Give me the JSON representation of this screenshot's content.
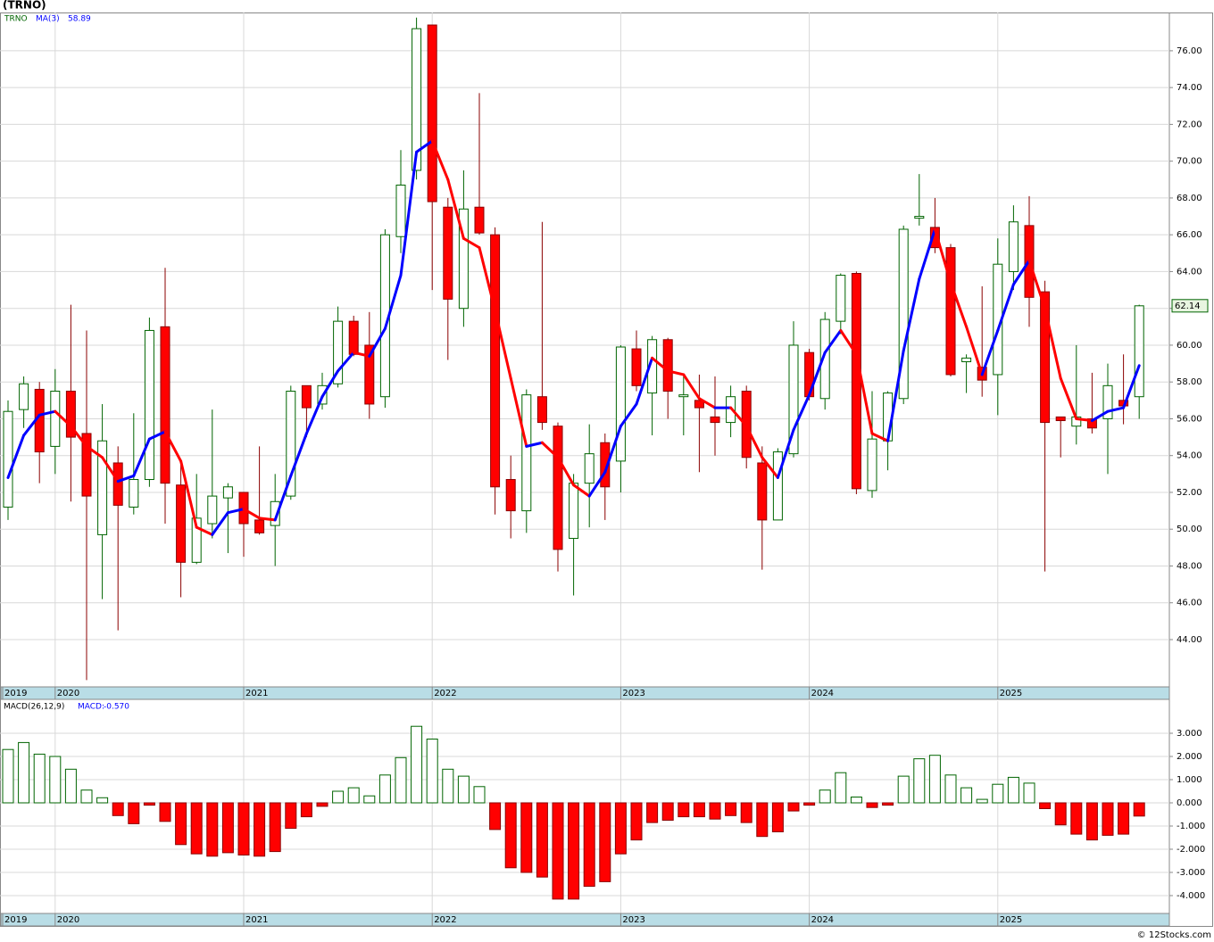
{
  "chart_data": [
    {
      "type": "candlestick",
      "title": "(TRNO)",
      "symbol": "TRNO",
      "categories": [
        "2019",
        null,
        null,
        "2020",
        null,
        null,
        null,
        null,
        null,
        null,
        null,
        null,
        null,
        null,
        null,
        "2021",
        null,
        null,
        null,
        null,
        null,
        null,
        null,
        null,
        null,
        null,
        null,
        "2022",
        null,
        null,
        null,
        null,
        null,
        null,
        null,
        null,
        null,
        null,
        null,
        "2023",
        null,
        null,
        null,
        null,
        null,
        null,
        null,
        null,
        null,
        null,
        null,
        "2024",
        null,
        null,
        null,
        null,
        null,
        null,
        null,
        null,
        null,
        null,
        null,
        "2025",
        null,
        null,
        null,
        null,
        null,
        null,
        null,
        null,
        null
      ],
      "open": [
        51.2,
        56.5,
        57.6,
        54.5,
        57.5,
        55.2,
        49.7,
        53.6,
        51.2,
        52.7,
        61,
        52.4,
        48.2,
        50.3,
        51.7,
        52,
        50.5,
        50.2,
        51.8,
        57.8,
        56.8,
        57.9,
        61.3,
        60,
        57.2,
        65.9,
        69.5,
        77.4,
        67.5,
        62,
        67.5,
        66,
        52.7,
        51,
        57.2,
        55.6,
        49.5,
        52.5,
        54.7,
        53.7,
        59.8,
        57.4,
        60.3,
        57.2,
        57,
        56.1,
        55.8,
        57.5,
        53.6,
        50.5,
        54.1,
        59.6,
        57.1,
        61.3,
        63.9,
        52.1,
        54.8,
        57.1,
        66.9,
        66.4,
        65.3,
        59.1,
        58.8,
        58.4,
        64,
        66.5,
        62.9,
        56.1,
        55.6,
        56,
        56,
        57,
        57.2
      ],
      "high": [
        57,
        58.3,
        58,
        58.7,
        62.2,
        60.8,
        56.8,
        54.5,
        56.3,
        61.5,
        64.2,
        53.5,
        53,
        56.5,
        52.5,
        52,
        54.5,
        53,
        57.8,
        57.8,
        58.5,
        62.1,
        61.6,
        61.8,
        66.3,
        70.6,
        77.8,
        77.4,
        68,
        69.5,
        73.7,
        66.4,
        54,
        57.6,
        66.7,
        55.8,
        53,
        55.7,
        55.2,
        60,
        60.8,
        60.5,
        60.4,
        58.3,
        58.4,
        58.3,
        57.8,
        57.8,
        54.5,
        54.4,
        61.3,
        59.8,
        61.8,
        63.9,
        64,
        57.5,
        57.5,
        66.5,
        69.3,
        68,
        65.5,
        59.5,
        63.2,
        65.8,
        67.6,
        68.1,
        63.5,
        56,
        60,
        58.5,
        59,
        59.5,
        62.2
      ],
      "low": [
        50.5,
        55.5,
        52.5,
        53,
        51.5,
        41.8,
        46.2,
        44.5,
        50.8,
        52.3,
        50.3,
        46.3,
        48.1,
        49.5,
        48.7,
        48.5,
        49.7,
        48,
        51.6,
        55,
        56.5,
        57.7,
        59.4,
        56,
        56.6,
        65,
        69,
        63,
        59.2,
        61,
        66,
        50.8,
        49.5,
        49.8,
        55.4,
        47.7,
        46.4,
        50.1,
        50.5,
        52,
        57.5,
        55.1,
        56,
        55.1,
        53.1,
        54,
        55,
        53.3,
        47.8,
        50.5,
        53.9,
        57,
        56.5,
        60.6,
        51.9,
        51.7,
        53.2,
        56.8,
        66.5,
        65,
        58.3,
        57.4,
        57.2,
        56.2,
        63,
        61,
        47.7,
        53.9,
        54.6,
        55.2,
        53,
        55.7,
        56
      ],
      "close": [
        56.4,
        57.9,
        54.2,
        57.5,
        55,
        51.8,
        54.8,
        51.3,
        52.7,
        60.8,
        52.5,
        48.2,
        50.6,
        51.8,
        52.3,
        50.3,
        49.8,
        51.5,
        57.5,
        56.6,
        57.8,
        61.3,
        59.5,
        56.8,
        66,
        68.7,
        77.2,
        67.8,
        62.5,
        67.4,
        66.1,
        52.3,
        51,
        57.3,
        55.8,
        48.9,
        52.5,
        54.1,
        52.3,
        59.9,
        57.8,
        60.3,
        57.5,
        57.3,
        56.6,
        55.8,
        57.2,
        53.9,
        50.5,
        54.2,
        60,
        57.2,
        61.4,
        63.8,
        52.2,
        54.9,
        57.4,
        66.3,
        67,
        65.3,
        58.4,
        59.3,
        58.1,
        64.4,
        66.7,
        62.6,
        55.8,
        55.9,
        56.1,
        55.5,
        57.8,
        56.7,
        62.14
      ],
      "up_color": "#006400",
      "down_color": "#ff0000",
      "ma": {
        "name": "MA(3)",
        "up_color": "#0000ff",
        "down_color": "#ff0000",
        "values": [
          52.8,
          55.1,
          56.2,
          56.4,
          55.6,
          54.5,
          53.9,
          52.6,
          52.9,
          54.9,
          55.3,
          53.7,
          50.1,
          49.7,
          50.9,
          51.1,
          50.6,
          50.5,
          52.9,
          55.2,
          57.2,
          58.6,
          59.6,
          59.4,
          60.9,
          63.8,
          70.5,
          71.1,
          69,
          65.8,
          65.3,
          61.9,
          58.2,
          54.5,
          54.7,
          53.9,
          52.4,
          51.8,
          53.1,
          55.6,
          56.8,
          59.3,
          58.6,
          58.4,
          57.1,
          56.6,
          56.6,
          55.6,
          53.9,
          52.8,
          55.4,
          57.3,
          59.6,
          60.8,
          59.5,
          55.2,
          54.8,
          59.7,
          63.6,
          66.3,
          63.4,
          61,
          58.4,
          60.8,
          63.3,
          64.6,
          62,
          58.2,
          56,
          55.9,
          56.4,
          56.6,
          58.89
        ]
      },
      "ylim": [
        41.43,
        78.08
      ],
      "yticks": [
        {
          "value": 44,
          "label": "44.00"
        },
        {
          "value": 46,
          "label": "46.00"
        },
        {
          "value": 48,
          "label": "48.00"
        },
        {
          "value": 50,
          "label": "50.00"
        },
        {
          "value": 52,
          "label": "52.00"
        },
        {
          "value": 54,
          "label": "54.00"
        },
        {
          "value": 56,
          "label": "56.00"
        },
        {
          "value": 58,
          "label": "58.00"
        },
        {
          "value": 60,
          "label": "60.00"
        },
        {
          "value": 62,
          "label": "62.00"
        },
        {
          "value": 64,
          "label": "64.00"
        },
        {
          "value": 66,
          "label": "66.00"
        },
        {
          "value": 68,
          "label": "68.00"
        },
        {
          "value": 70,
          "label": "70.00"
        },
        {
          "value": 72,
          "label": "72.00"
        },
        {
          "value": 74,
          "label": "74.00"
        },
        {
          "value": 76,
          "label": "76.00"
        }
      ],
      "grid": true
    },
    {
      "type": "bar",
      "title": "MACD(26,12,9)",
      "current": {
        "label": "MACD:",
        "value_label": "-0.570"
      },
      "categories": [
        "2019",
        null,
        null,
        "2020",
        null,
        null,
        null,
        null,
        null,
        null,
        null,
        null,
        null,
        null,
        null,
        "2021",
        null,
        null,
        null,
        null,
        null,
        null,
        null,
        null,
        null,
        null,
        null,
        "2022",
        null,
        null,
        null,
        null,
        null,
        null,
        null,
        null,
        null,
        null,
        null,
        "2023",
        null,
        null,
        null,
        null,
        null,
        null,
        null,
        null,
        null,
        null,
        null,
        "2024",
        null,
        null,
        null,
        null,
        null,
        null,
        null,
        null,
        null,
        null,
        null,
        "2025",
        null,
        null,
        null,
        null,
        null,
        null,
        null,
        null,
        null
      ],
      "values": [
        2.3,
        2.6,
        2.1,
        2.0,
        1.45,
        0.55,
        0.22,
        -0.55,
        -0.9,
        -0.1,
        -0.8,
        -1.8,
        -2.2,
        -2.3,
        -2.15,
        -2.25,
        -2.3,
        -2.1,
        -1.1,
        -0.6,
        -0.15,
        0.5,
        0.65,
        0.3,
        1.2,
        1.95,
        3.3,
        2.75,
        1.45,
        1.15,
        0.7,
        -1.15,
        -2.8,
        -3.0,
        -3.2,
        -4.15,
        -4.15,
        -3.6,
        -3.4,
        -2.2,
        -1.6,
        -0.85,
        -0.75,
        -0.6,
        -0.6,
        -0.7,
        -0.55,
        -0.85,
        -1.45,
        -1.25,
        -0.35,
        -0.1,
        0.55,
        1.3,
        0.25,
        -0.2,
        -0.1,
        1.15,
        1.9,
        2.05,
        1.2,
        0.65,
        0.15,
        0.8,
        1.1,
        0.85,
        -0.25,
        -0.95,
        -1.35,
        -1.6,
        -1.4,
        -1.35,
        -0.57
      ],
      "up_color": "#006400",
      "down_color": "#ff0000",
      "ylim": [
        -4.77,
        4.385
      ],
      "yticks": [
        {
          "value": 3,
          "label": "3.000"
        },
        {
          "value": 2,
          "label": "2.000"
        },
        {
          "value": 1,
          "label": "1.000"
        },
        {
          "value": 0,
          "label": "0.000"
        },
        {
          "value": -1,
          "label": "-1.000"
        },
        {
          "value": -2,
          "label": "-2.000"
        },
        {
          "value": -3,
          "label": "-3.000"
        },
        {
          "value": -4,
          "label": "-4.000"
        }
      ],
      "grid": true
    }
  ],
  "footer": "© 12Stocks.com"
}
